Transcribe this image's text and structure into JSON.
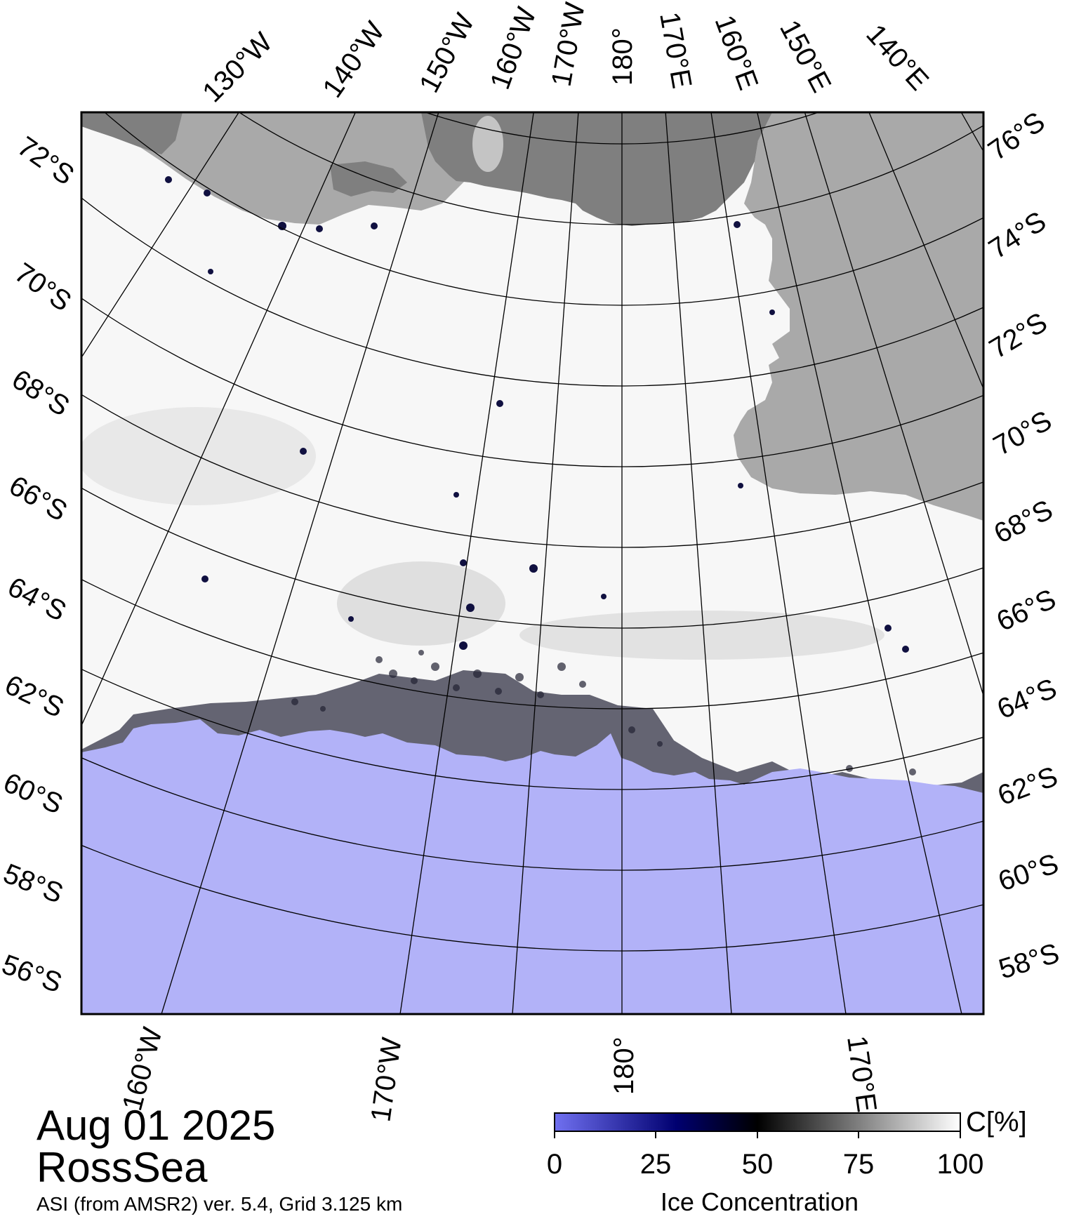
{
  "map": {
    "date": "Aug 01 2025",
    "region": "RossSea",
    "source": "ASI (from AMSR2) ver. 5.4,  Grid 3.125 km",
    "colors": {
      "open_water": "#b2b2f8",
      "land": "#a9a9a9",
      "ice_shelf": "#7f7f7f",
      "ice_shelf_light": "#c4c4c4",
      "sea_ice": "#f7f7f7",
      "graticule": "#000000"
    },
    "top_labels": [
      "130°W",
      "140°W",
      "150°W",
      "160°W",
      "170°W",
      "180°",
      "170°E",
      "160°E",
      "150°E",
      "140°E"
    ],
    "left_labels": [
      "72°S",
      "70°S",
      "68°S",
      "66°S",
      "64°S",
      "62°S",
      "60°S",
      "58°S",
      "56°S"
    ],
    "right_labels": [
      "76°S",
      "74°S",
      "72°S",
      "70°S",
      "68°S",
      "66°S",
      "64°S",
      "62°S",
      "60°S",
      "58°S"
    ],
    "bottom_labels": [
      "160°W",
      "170°W",
      "180°",
      "170°E"
    ]
  },
  "colorbar": {
    "title": "Ice Concentration",
    "unit": "C[%]",
    "ticks": [
      "0",
      "25",
      "50",
      "75",
      "100"
    ],
    "stops": [
      "#7070f0",
      "#000070",
      "#000000",
      "#ffffff"
    ]
  }
}
